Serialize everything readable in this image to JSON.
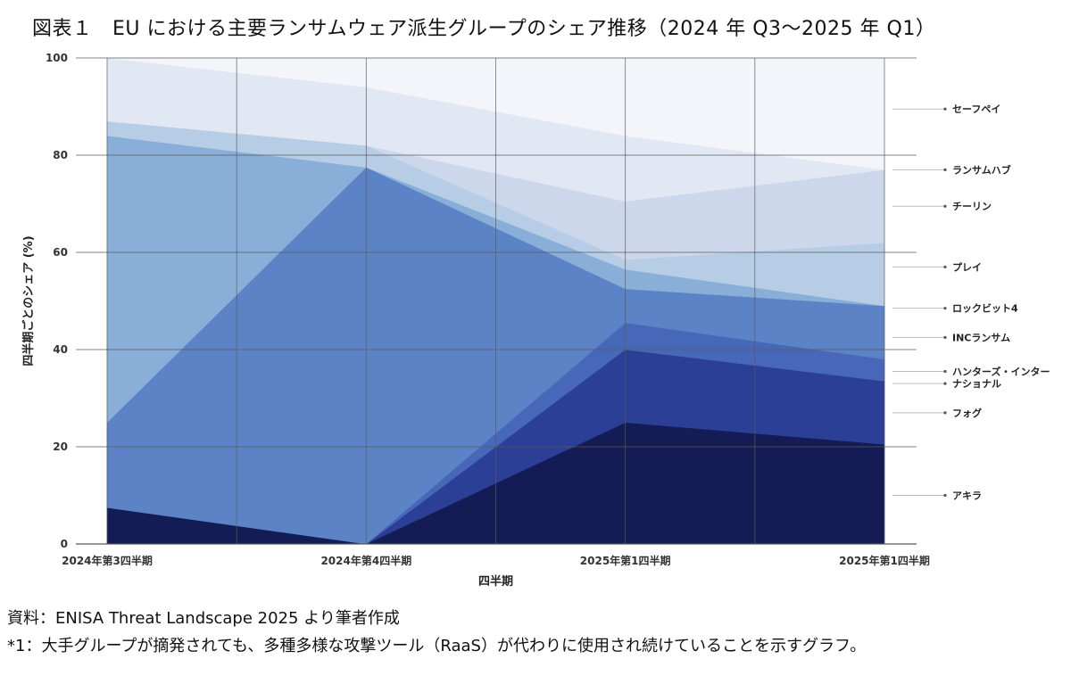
{
  "title": "図表１　EU における主要ランサムウェア派生グループのシェア推移（2024 年 Q3〜2025 年 Q1）",
  "source": "資料：ENISA Threat Landscape 2025 より筆者作成",
  "note": "*1：大手グループが摘発されても、多種多様な攻撃ツール（RaaS）が代わりに使用され続けていることを示すグラフ。",
  "chart_data": {
    "type": "area",
    "stacked": true,
    "xlabel": "四半期",
    "ylabel": "四半期ごとのシェア (%)",
    "ylim": [
      0,
      100
    ],
    "yticks": [
      0,
      20,
      40,
      60,
      80,
      100
    ],
    "x_labels": [
      "2024年第3四半期",
      "2024年第4四半期",
      "2025年第1四半期",
      "2025年第1四半期"
    ],
    "x": [
      0,
      1,
      2,
      3
    ],
    "series": [
      {
        "name": "アキラ",
        "values": [
          7.5,
          0,
          25,
          20.5
        ],
        "color": "#141c55",
        "label_at": 10
      },
      {
        "name": "フォグ",
        "values": [
          0,
          0,
          15,
          13
        ],
        "color": "#2c3f96",
        "label_at": 27
      },
      {
        "name": "ナショナル",
        "values": [
          0,
          0,
          0,
          0
        ],
        "color": "#3a52ab",
        "label_at": 33
      },
      {
        "name": "ハンターズ・インター",
        "values": [
          0,
          0,
          5.5,
          4.5
        ],
        "color": "#4767b8",
        "label_at": 35.5
      },
      {
        "name": "INCランサム",
        "values": [
          17.5,
          77.5,
          7,
          11
        ],
        "color": "#5b83c6",
        "label_at": 42.5
      },
      {
        "name": "ロックビット4",
        "values": [
          59,
          0,
          4,
          0
        ],
        "color": "#89afd9",
        "label_at": 48.5
      },
      {
        "name": "プレイ",
        "values": [
          3,
          4.5,
          2,
          13
        ],
        "color": "#b7cde6",
        "label_at": 57
      },
      {
        "name": "チーリン",
        "values": [
          0,
          0,
          12,
          15
        ],
        "color": "#cdd7ec",
        "label_at": 69.5
      },
      {
        "name": "ランサムハブ",
        "values": [
          13,
          12,
          13.5,
          0
        ],
        "color": "#e2e7f4",
        "label_at": 77
      },
      {
        "name": "セーフペイ",
        "values": [
          0,
          6,
          16,
          23
        ],
        "color": "#f4f5fb",
        "label_at": 89.5
      }
    ]
  }
}
